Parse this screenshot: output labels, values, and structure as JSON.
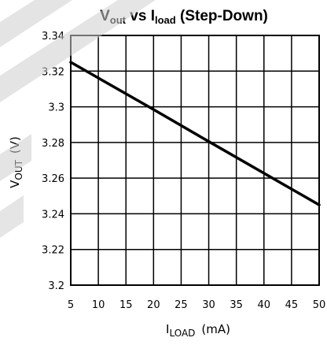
{
  "chart_data": {
    "type": "line",
    "title": {
      "main": "V",
      "main_sub": "out",
      "vs": " vs ",
      "second": "I",
      "second_sub": "load",
      "suffix": " (Step-Down)"
    },
    "xlabel": {
      "main": "I",
      "sub": "LOAD",
      "unit": "(mA)"
    },
    "ylabel": {
      "main": "V",
      "sub": "OUT",
      "unit": "(V)"
    },
    "xlim": [
      5,
      50
    ],
    "ylim": [
      3.2,
      3.34
    ],
    "x_ticks": [
      "5",
      "10",
      "15",
      "20",
      "25",
      "30",
      "35",
      "40",
      "45",
      "50"
    ],
    "y_ticks": [
      "3.2",
      "3.22",
      "3.24",
      "3.26",
      "3.28",
      "3.3",
      "3.32",
      "3.34"
    ],
    "grid": true,
    "series": [
      {
        "x": [
          5,
          20,
          30,
          50
        ],
        "y": [
          3.325,
          3.2985,
          3.2805,
          3.245
        ],
        "color": "#000000"
      }
    ],
    "watermark_color": "#cfcfcf"
  }
}
